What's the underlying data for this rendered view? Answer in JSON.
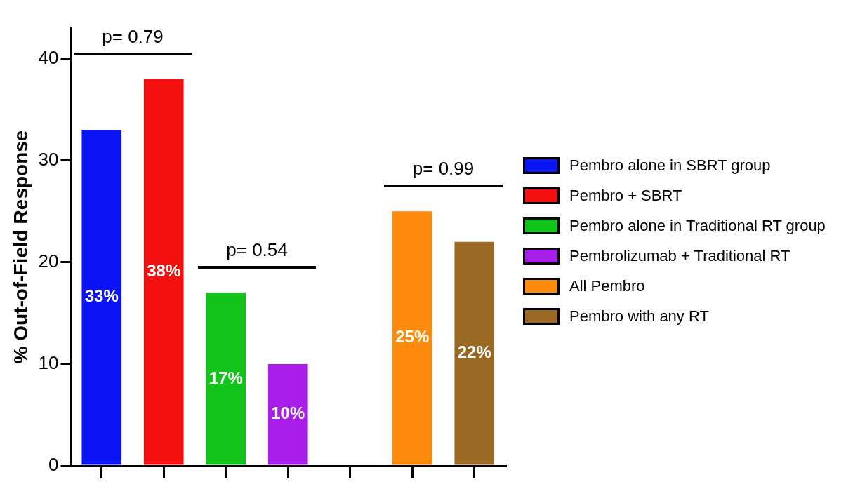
{
  "chart_data": {
    "type": "bar",
    "ylabel": "% Out-of-Field Response",
    "categories": [
      null,
      null,
      null,
      null,
      null,
      null,
      null
    ],
    "ylim": [
      0,
      43
    ],
    "yticks": [
      0,
      10,
      20,
      30,
      40
    ],
    "grid": false,
    "legend": "right",
    "tick_labels": "y",
    "series": [
      {
        "name": "Pembro alone in SBRT group",
        "color": "#0a14f5",
        "values": [
          33,
          null,
          null,
          null,
          null,
          null,
          null
        ],
        "value_labels": [
          "33%",
          null,
          null,
          null,
          null,
          null,
          null
        ]
      },
      {
        "name": "Pembro + SBRT",
        "color": "#f51010",
        "values": [
          null,
          38,
          null,
          null,
          null,
          null,
          null
        ],
        "value_labels": [
          null,
          "38%",
          null,
          null,
          null,
          null,
          null
        ]
      },
      {
        "name": "Pembro alone in Traditional RT group",
        "color": "#12c41a",
        "values": [
          null,
          null,
          17,
          null,
          null,
          null,
          null
        ],
        "value_labels": [
          null,
          null,
          "17%",
          null,
          null,
          null,
          null
        ]
      },
      {
        "name": "Pembrolizumab + Traditional RT",
        "color": "#a81ee8",
        "values": [
          null,
          null,
          null,
          10,
          null,
          null,
          null
        ],
        "value_labels": [
          null,
          null,
          null,
          "10%",
          null,
          null,
          null
        ]
      },
      {
        "name": "All Pembro",
        "color": "#fb8a0a",
        "values": [
          null,
          null,
          null,
          null,
          null,
          25,
          null
        ],
        "value_labels": [
          null,
          null,
          null,
          null,
          null,
          "25%",
          null
        ]
      },
      {
        "name": "Pembro with any RT",
        "color": "#9a6a24",
        "values": [
          null,
          null,
          null,
          null,
          null,
          null,
          22
        ],
        "value_labels": [
          null,
          null,
          null,
          null,
          null,
          null,
          "22%"
        ]
      }
    ],
    "annotations": [
      "p= 0.79",
      "p= 0.54",
      "p= 0.99"
    ]
  }
}
